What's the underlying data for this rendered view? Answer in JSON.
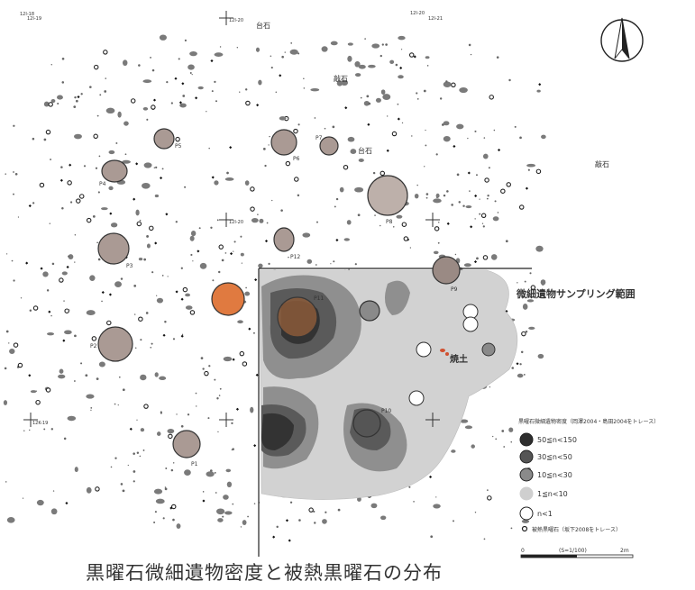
{
  "map": {
    "caption": "黒曜石微細遺物密度と被熱黒曜石の分布",
    "sampling_area_label": "微細遺物サンプリング範囲",
    "burnt_soil_label": "焼土",
    "grid_labels": [
      "12I-18",
      "12I-19",
      "12I-20",
      "12I-20",
      "12I-21",
      "12I-20",
      "12K-19"
    ],
    "feature_labels": {
      "stone_base": "台石",
      "stone_base2": "台石",
      "hammer_stone": "敲石",
      "hammer_stone2": "敲石",
      "pits": [
        "P1",
        "P2",
        "P3",
        "P4",
        "P5",
        "P6",
        "P7",
        "P8",
        "P9",
        "P10",
        "P11",
        "P12"
      ]
    }
  },
  "legend": {
    "title": "黒曜石微細遺物密度（岡澤2004・島田2004をトレース）",
    "items": [
      {
        "label": "50≦n<150",
        "color": "#2e2e2e"
      },
      {
        "label": "30≦n<50",
        "color": "#555555"
      },
      {
        "label": "10≦n<30",
        "color": "#8a8a8a"
      },
      {
        "label": "1≦n<10",
        "color": "#cfcfcf"
      },
      {
        "label": "n<1",
        "color": "#ffffff"
      }
    ],
    "heated_label": "被熱黒曜石（坂下2008をトレース）",
    "scale": {
      "zero": "0",
      "ratio": "(S=1/100)",
      "end": "2m"
    }
  }
}
